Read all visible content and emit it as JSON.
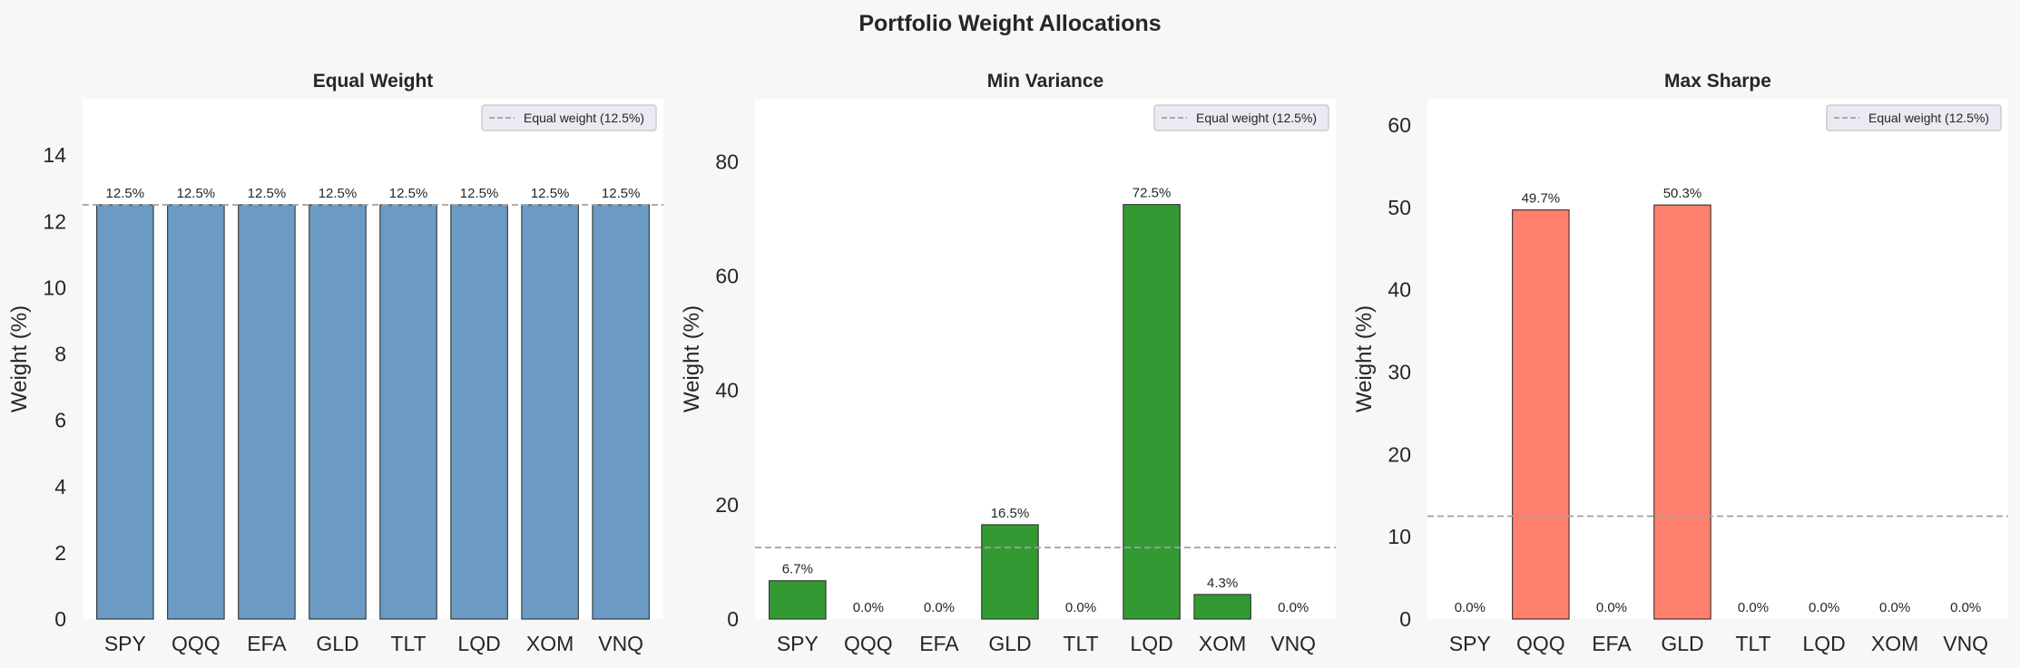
{
  "figure": {
    "title": "Portfolio Weight Allocations",
    "background": "#f7f7f7"
  },
  "chart_data": [
    {
      "type": "bar",
      "title": "Equal Weight",
      "ylabel": "Weight (%)",
      "xlabel": "",
      "categories": [
        "SPY",
        "QQQ",
        "EFA",
        "GLD",
        "TLT",
        "LQD",
        "XOM",
        "VNQ"
      ],
      "values": [
        12.5,
        12.5,
        12.5,
        12.5,
        12.5,
        12.5,
        12.5,
        12.5
      ],
      "data_labels": [
        "12.5%",
        "12.5%",
        "12.5%",
        "12.5%",
        "12.5%",
        "12.5%",
        "12.5%",
        "12.5%"
      ],
      "ylim": [
        0,
        15.7
      ],
      "yticks": [
        0,
        2,
        4,
        6,
        8,
        10,
        12,
        14
      ],
      "color": "#6b9bc4",
      "reference_line": {
        "value": 12.5,
        "label": "Equal weight (12.5%)",
        "color": "#a0a0a0",
        "style": "dashed"
      },
      "legend": "top-right",
      "grid": false
    },
    {
      "type": "bar",
      "title": "Min Variance",
      "ylabel": "Weight (%)",
      "xlabel": "",
      "categories": [
        "SPY",
        "QQQ",
        "EFA",
        "GLD",
        "TLT",
        "LQD",
        "XOM",
        "VNQ"
      ],
      "values": [
        6.7,
        0.0,
        0.0,
        16.5,
        0.0,
        72.5,
        4.3,
        0.0
      ],
      "data_labels": [
        "6.7%",
        "0.0%",
        "0.0%",
        "16.5%",
        "0.0%",
        "72.5%",
        "4.3%",
        "0.0%"
      ],
      "ylim": [
        0,
        91
      ],
      "yticks": [
        0,
        20,
        40,
        60,
        80
      ],
      "color": "#339a33",
      "reference_line": {
        "value": 12.5,
        "label": "Equal weight (12.5%)",
        "color": "#a0a0a0",
        "style": "dashed"
      },
      "legend": "top-right",
      "grid": false
    },
    {
      "type": "bar",
      "title": "Max Sharpe",
      "ylabel": "Weight (%)",
      "xlabel": "",
      "categories": [
        "SPY",
        "QQQ",
        "EFA",
        "GLD",
        "TLT",
        "LQD",
        "XOM",
        "VNQ"
      ],
      "values": [
        0.0,
        49.7,
        0.0,
        50.3,
        0.0,
        0.0,
        0.0,
        0.0
      ],
      "data_labels": [
        "0.0%",
        "49.7%",
        "0.0%",
        "50.3%",
        "0.0%",
        "0.0%",
        "0.0%",
        "0.0%"
      ],
      "ylim": [
        0,
        63.2
      ],
      "yticks": [
        0,
        10,
        20,
        30,
        40,
        50,
        60
      ],
      "color": "#ff806c",
      "reference_line": {
        "value": 12.5,
        "label": "Equal weight (12.5%)",
        "color": "#a0a0a0",
        "style": "dashed"
      },
      "legend": "top-right",
      "grid": false
    }
  ]
}
